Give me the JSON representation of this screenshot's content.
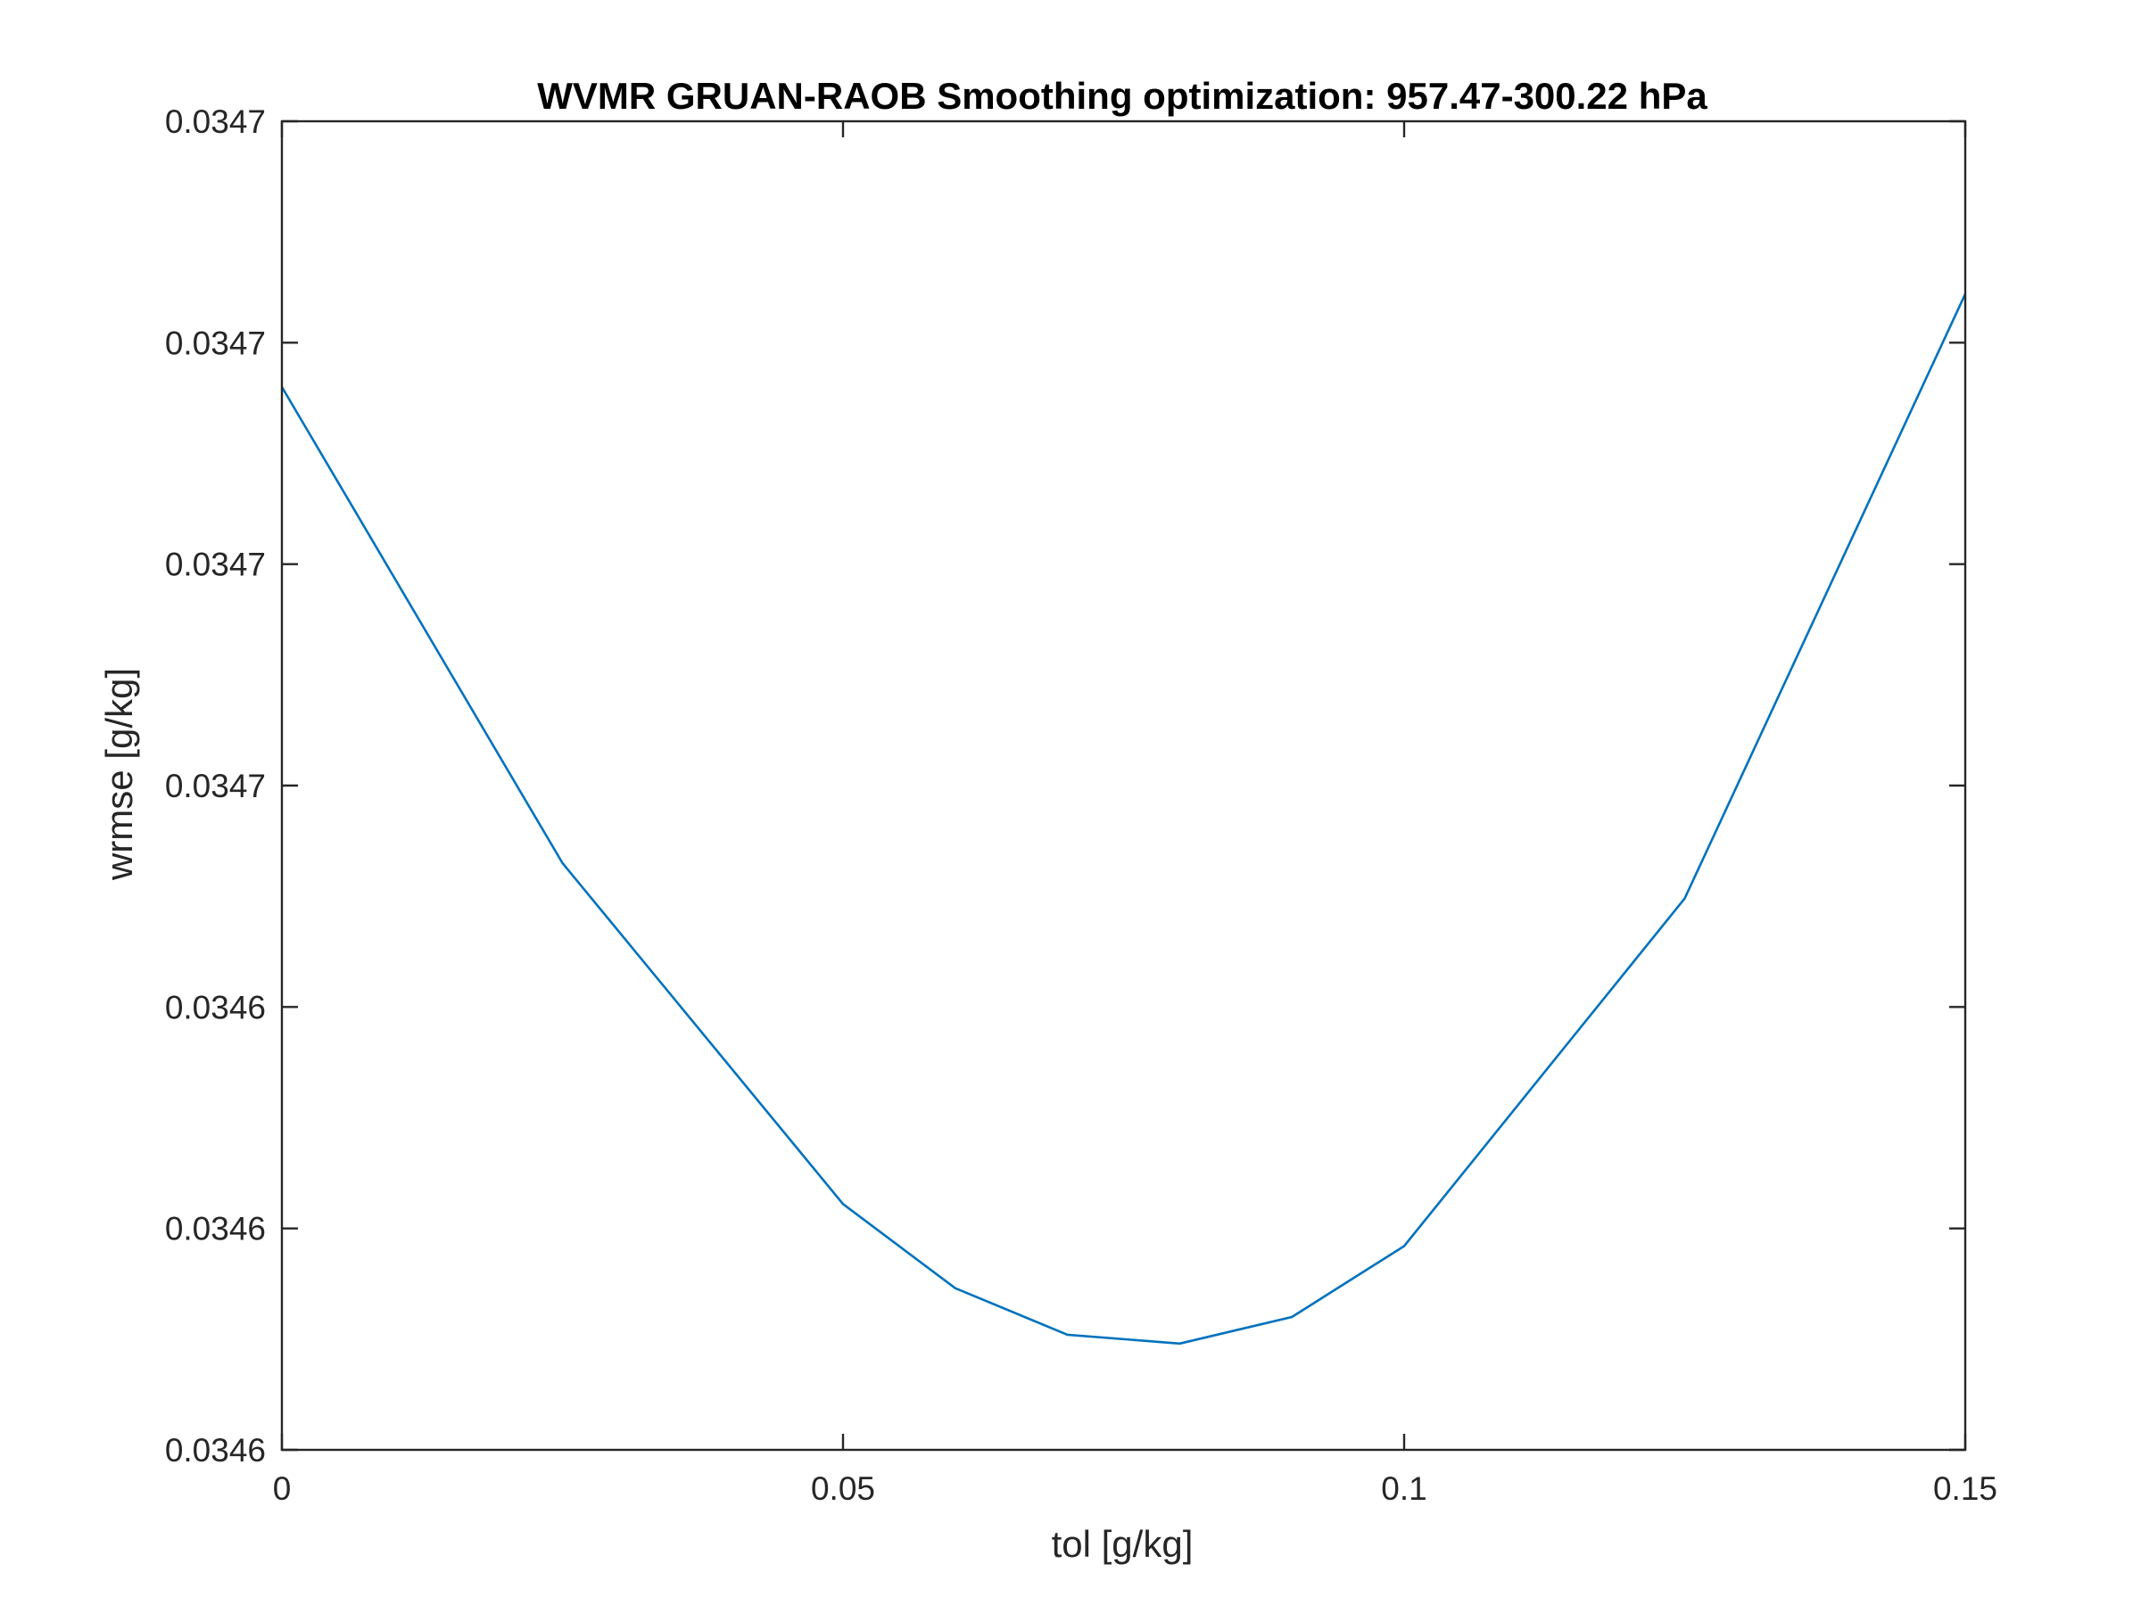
{
  "chart_data": {
    "type": "line",
    "title": "WVMR GRUAN-RAOB Smoothing optimization:  957.47-300.22 hPa",
    "xlabel": "tol [g/kg]",
    "ylabel": "wrmse [g/kg]",
    "xlim": [
      0,
      0.15
    ],
    "ylim": [
      0,
      6
    ],
    "x_ticks": [
      {
        "value": 0,
        "label": "0"
      },
      {
        "value": 0.05,
        "label": "0.05"
      },
      {
        "value": 0.1,
        "label": "0.1"
      },
      {
        "value": 0.15,
        "label": "0.15"
      }
    ],
    "y_ticks": [
      {
        "value": 0,
        "label": "0.0346"
      },
      {
        "value": 1,
        "label": "0.0346"
      },
      {
        "value": 2,
        "label": "0.0346"
      },
      {
        "value": 3,
        "label": "0.0347"
      },
      {
        "value": 4,
        "label": "0.0347"
      },
      {
        "value": 5,
        "label": "0.0347"
      },
      {
        "value": 6,
        "label": "0.0347"
      }
    ],
    "grid": false,
    "series": [
      {
        "color": "#0072bd",
        "x": [
          0,
          0.025,
          0.05,
          0.06,
          0.07,
          0.08,
          0.09,
          0.1,
          0.125,
          0.15
        ],
        "y": [
          4.8,
          2.65,
          1.11,
          0.73,
          0.52,
          0.48,
          0.6,
          0.92,
          2.49,
          5.22
        ]
      }
    ]
  }
}
